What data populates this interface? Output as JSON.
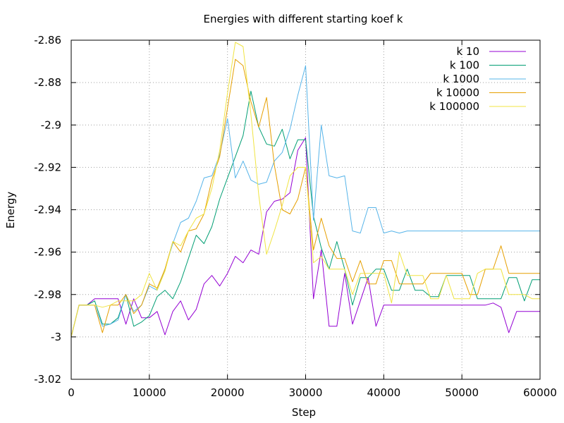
{
  "chart_data": {
    "type": "line",
    "title": "Energies with different starting koef k",
    "xlabel": "Step",
    "ylabel": "Energy",
    "xlim": [
      0,
      60000
    ],
    "ylim": [
      -3.02,
      -2.86
    ],
    "xticks": [
      0,
      10000,
      20000,
      30000,
      40000,
      50000,
      60000
    ],
    "yticks": [
      -3.02,
      -3,
      -2.98,
      -2.96,
      -2.94,
      -2.92,
      -2.9,
      -2.88,
      -2.86
    ],
    "grid": true,
    "legend_position": "top-right",
    "series": [
      {
        "name": "k 10",
        "color": "#9400d3",
        "x": [
          0,
          1000,
          2000,
          3000,
          4000,
          5000,
          6000,
          7000,
          8000,
          9000,
          10000,
          11000,
          12000,
          13000,
          14000,
          15000,
          16000,
          17000,
          18000,
          19000,
          20000,
          21000,
          22000,
          23000,
          24000,
          25000,
          26000,
          27000,
          28000,
          29000,
          30000,
          31000,
          32000,
          33000,
          34000,
          35000,
          36000,
          37000,
          38000,
          39000,
          40000,
          41000,
          42000,
          43000,
          44000,
          45000,
          46000,
          47000,
          48000,
          49000,
          50000,
          51000,
          52000,
          53000,
          54000,
          55000,
          56000,
          57000,
          58000,
          59000,
          60000
        ],
        "y": [
          -3.0,
          -2.985,
          -2.985,
          -2.982,
          -2.982,
          -2.982,
          -2.982,
          -2.994,
          -2.982,
          -2.991,
          -2.991,
          -2.988,
          -2.999,
          -2.988,
          -2.983,
          -2.992,
          -2.987,
          -2.975,
          -2.971,
          -2.976,
          -2.97,
          -2.962,
          -2.965,
          -2.959,
          -2.961,
          -2.941,
          -2.936,
          -2.935,
          -2.932,
          -2.912,
          -2.906,
          -2.982,
          -2.959,
          -2.995,
          -2.995,
          -2.97,
          -2.994,
          -2.983,
          -2.972,
          -2.995,
          -2.985,
          -2.985,
          -2.985,
          -2.985,
          -2.985,
          -2.985,
          -2.985,
          -2.985,
          -2.985,
          -2.985,
          -2.985,
          -2.985,
          -2.985,
          -2.985,
          -2.984,
          -2.986,
          -2.998,
          -2.988,
          -2.988,
          -2.988,
          -2.988
        ]
      },
      {
        "name": "k 100",
        "color": "#009e73",
        "x": [
          0,
          1000,
          2000,
          3000,
          4000,
          5000,
          6000,
          7000,
          8000,
          9000,
          10000,
          11000,
          12000,
          13000,
          14000,
          15000,
          16000,
          17000,
          18000,
          19000,
          20000,
          21000,
          22000,
          23000,
          24000,
          25000,
          26000,
          27000,
          28000,
          29000,
          30000,
          31000,
          32000,
          33000,
          34000,
          35000,
          36000,
          37000,
          38000,
          39000,
          40000,
          41000,
          42000,
          43000,
          44000,
          45000,
          46000,
          47000,
          48000,
          49000,
          50000,
          51000,
          52000,
          53000,
          54000,
          55000,
          56000,
          57000,
          58000,
          59000,
          60000
        ],
        "y": [
          -3.0,
          -2.985,
          -2.985,
          -2.983,
          -2.994,
          -2.994,
          -2.991,
          -2.98,
          -2.995,
          -2.993,
          -2.99,
          -2.981,
          -2.978,
          -2.982,
          -2.974,
          -2.963,
          -2.952,
          -2.956,
          -2.948,
          -2.935,
          -2.925,
          -2.915,
          -2.905,
          -2.884,
          -2.901,
          -2.909,
          -2.91,
          -2.902,
          -2.916,
          -2.907,
          -2.907,
          -2.943,
          -2.958,
          -2.968,
          -2.955,
          -2.968,
          -2.985,
          -2.972,
          -2.972,
          -2.968,
          -2.968,
          -2.978,
          -2.978,
          -2.968,
          -2.978,
          -2.978,
          -2.981,
          -2.981,
          -2.971,
          -2.971,
          -2.971,
          -2.971,
          -2.982,
          -2.982,
          -2.982,
          -2.982,
          -2.972,
          -2.972,
          -2.983,
          -2.973,
          -2.973
        ]
      },
      {
        "name": "k 1000",
        "color": "#56b4e9",
        "x": [
          0,
          1000,
          2000,
          3000,
          4000,
          5000,
          6000,
          7000,
          8000,
          9000,
          10000,
          11000,
          12000,
          13000,
          14000,
          15000,
          16000,
          17000,
          18000,
          19000,
          20000,
          21000,
          22000,
          23000,
          24000,
          25000,
          26000,
          27000,
          28000,
          29000,
          30000,
          31000,
          32000,
          33000,
          34000,
          35000,
          36000,
          37000,
          38000,
          39000,
          40000,
          41000,
          42000,
          43000,
          44000,
          45000,
          46000,
          47000,
          48000,
          49000,
          50000,
          51000,
          52000,
          53000,
          54000,
          55000,
          56000,
          57000,
          58000,
          59000,
          60000
        ],
        "y": [
          -3.0,
          -2.985,
          -2.985,
          -2.985,
          -2.995,
          -2.994,
          -2.992,
          -2.98,
          -2.988,
          -2.985,
          -2.976,
          -2.978,
          -2.968,
          -2.956,
          -2.946,
          -2.944,
          -2.936,
          -2.925,
          -2.924,
          -2.914,
          -2.897,
          -2.925,
          -2.917,
          -2.926,
          -2.928,
          -2.927,
          -2.917,
          -2.913,
          -2.902,
          -2.886,
          -2.872,
          -2.945,
          -2.9,
          -2.924,
          -2.925,
          -2.924,
          -2.95,
          -2.951,
          -2.939,
          -2.939,
          -2.951,
          -2.95,
          -2.951,
          -2.95,
          -2.95,
          -2.95,
          -2.95,
          -2.95,
          -2.95,
          -2.95,
          -2.95,
          -2.95,
          -2.95,
          -2.95,
          -2.95,
          -2.95,
          -2.95,
          -2.95,
          -2.95,
          -2.95,
          -2.95
        ]
      },
      {
        "name": "k 10000",
        "color": "#e69f00",
        "x": [
          0,
          1000,
          2000,
          3000,
          4000,
          5000,
          6000,
          7000,
          8000,
          9000,
          10000,
          11000,
          12000,
          13000,
          14000,
          15000,
          16000,
          17000,
          18000,
          19000,
          20000,
          21000,
          22000,
          23000,
          24000,
          25000,
          26000,
          27000,
          28000,
          29000,
          30000,
          31000,
          32000,
          33000,
          34000,
          35000,
          36000,
          37000,
          38000,
          39000,
          40000,
          41000,
          42000,
          43000,
          44000,
          45000,
          46000,
          47000,
          48000,
          49000,
          50000,
          51000,
          52000,
          53000,
          54000,
          55000,
          56000,
          57000,
          58000,
          59000,
          60000
        ],
        "y": [
          -3.0,
          -2.985,
          -2.985,
          -2.985,
          -2.998,
          -2.985,
          -2.985,
          -2.98,
          -2.989,
          -2.985,
          -2.975,
          -2.977,
          -2.968,
          -2.955,
          -2.96,
          -2.95,
          -2.949,
          -2.942,
          -2.926,
          -2.915,
          -2.892,
          -2.869,
          -2.872,
          -2.889,
          -2.901,
          -2.887,
          -2.919,
          -2.94,
          -2.942,
          -2.935,
          -2.92,
          -2.959,
          -2.944,
          -2.957,
          -2.963,
          -2.963,
          -2.974,
          -2.964,
          -2.975,
          -2.975,
          -2.964,
          -2.964,
          -2.975,
          -2.975,
          -2.975,
          -2.975,
          -2.97,
          -2.97,
          -2.97,
          -2.97,
          -2.97,
          -2.98,
          -2.98,
          -2.968,
          -2.968,
          -2.957,
          -2.97,
          -2.97,
          -2.97,
          -2.97,
          -2.97
        ]
      },
      {
        "name": "k 100000",
        "color": "#f0e442",
        "x": [
          0,
          1000,
          2000,
          3000,
          4000,
          5000,
          6000,
          7000,
          8000,
          9000,
          10000,
          11000,
          12000,
          13000,
          14000,
          15000,
          16000,
          17000,
          18000,
          19000,
          20000,
          21000,
          22000,
          23000,
          24000,
          25000,
          26000,
          27000,
          28000,
          29000,
          30000,
          31000,
          32000,
          33000,
          34000,
          35000,
          36000,
          37000,
          38000,
          39000,
          40000,
          41000,
          42000,
          43000,
          44000,
          45000,
          46000,
          47000,
          48000,
          49000,
          50000,
          51000,
          52000,
          53000,
          54000,
          55000,
          56000,
          57000,
          58000,
          59000,
          60000
        ],
        "y": [
          -3.0,
          -2.985,
          -2.985,
          -2.985,
          -2.986,
          -2.985,
          -2.983,
          -2.983,
          -2.983,
          -2.98,
          -2.97,
          -2.978,
          -2.969,
          -2.955,
          -2.957,
          -2.95,
          -2.944,
          -2.942,
          -2.93,
          -2.912,
          -2.885,
          -2.861,
          -2.863,
          -2.895,
          -2.933,
          -2.961,
          -2.95,
          -2.938,
          -2.924,
          -2.92,
          -2.92,
          -2.965,
          -2.962,
          -2.968,
          -2.968,
          -2.968,
          -2.98,
          -2.97,
          -2.97,
          -2.97,
          -2.97,
          -2.984,
          -2.96,
          -2.971,
          -2.971,
          -2.971,
          -2.982,
          -2.982,
          -2.971,
          -2.982,
          -2.982,
          -2.982,
          -2.97,
          -2.968,
          -2.968,
          -2.968,
          -2.98,
          -2.98,
          -2.98,
          -2.982,
          -2.982
        ]
      }
    ]
  }
}
